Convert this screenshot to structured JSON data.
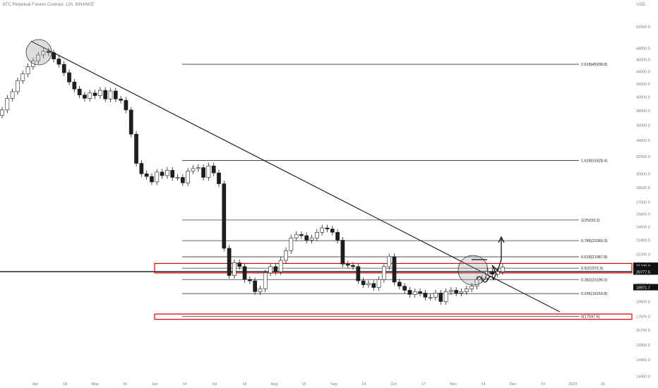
{
  "header": {
    "title": "BTC Perpetual Futures Contract, 12h, BINANCE",
    "currency": "USD"
  },
  "colors": {
    "candle": "#1e1e1e",
    "fib_line": "#3a3a3a",
    "zone_border": "#d80000",
    "trendline": "#111111",
    "circle_fill": "#9aa0a6",
    "grid_text": "#787b86",
    "price_badge": "#111111"
  },
  "chart_data": {
    "type": "candlestick",
    "symbol": "BTC Perpetual Futures Contract",
    "interval": "12h",
    "exchange": "BINANCE",
    "y_scale": "log",
    "ylim": [
      14000,
      56000
    ],
    "y_ticks": [
      "52000.0",
      "48000.0",
      "46000.0",
      "44000.0",
      "42000.0",
      "40000.0",
      "38000.0",
      "36000.0",
      "34000.0",
      "32000.0",
      "30000.0",
      "28500.0",
      "27000.0",
      "25800.0",
      "24600.0",
      "23400.0",
      "22200.0",
      "21000.0",
      "19800.0",
      "18600.0",
      "17600.0",
      "16700.0",
      "15800.0",
      "14960.0",
      "14060.0"
    ],
    "x_ticks": [
      "Apr",
      "18",
      "May",
      "16",
      "Jun",
      "14",
      "Jul",
      "18",
      "Aug",
      "15",
      "Sep",
      "14",
      "Oct",
      "17",
      "Nov",
      "14",
      "Dec",
      "19",
      "2023",
      "16"
    ],
    "closes": [
      38100,
      39800,
      40800,
      42500,
      43600,
      44800,
      45800,
      46800,
      47500,
      47200,
      46100,
      45200,
      43800,
      42300,
      41200,
      40300,
      39800,
      40600,
      40200,
      41000,
      39700,
      40900,
      39700,
      39500,
      38100,
      34800,
      31200,
      30000,
      29700,
      29100,
      30200,
      29800,
      30400,
      29600,
      29600,
      29000,
      30300,
      30600,
      30700,
      29600,
      30900,
      30100,
      28900,
      22700,
      20500,
      21500,
      21200,
      20200,
      20100,
      19300,
      19500,
      20700,
      21200,
      20800,
      21700,
      22500,
      23600,
      23900,
      23800,
      23400,
      23600,
      24100,
      24500,
      24400,
      24100,
      23400,
      21400,
      21300,
      21200,
      20100,
      19800,
      19900,
      19600,
      20200,
      21200,
      22000,
      20000,
      19700,
      19400,
      19100,
      19300,
      19200,
      18900,
      18900,
      19200,
      18600,
      19300,
      19400,
      19200,
      19300,
      19500,
      19700,
      20200,
      20300,
      20800,
      20600,
      20800,
      21150
    ],
    "fibonacci": [
      {
        "label": "2.618(45208.8)",
        "price": 45208.8
      },
      {
        "label": "1.618(31528.4)",
        "price": 31528.4
      },
      {
        "label": "1(25233.2)",
        "price": 25233.2
      },
      {
        "label": "0.786(23360.3)",
        "price": 23360.3
      },
      {
        "label": "0.618(21987.8)",
        "price": 21987.8
      },
      {
        "label": "0.5(21072.3)",
        "price": 21072.3
      },
      {
        "label": "0.382(20195.0)",
        "price": 20195.0
      },
      {
        "label": "0.236(19159.8)",
        "price": 19159.8
      },
      {
        "label": "0(17597.6)",
        "price": 17597.6
      }
    ],
    "price_badges": [
      {
        "label": "21240.0",
        "price": 21240.0
      },
      {
        "label": "01:51:24",
        "price": 20950.0
      },
      {
        "label": "20777.5",
        "price": 20777.5
      },
      {
        "label": "18971.7",
        "price": 19600.0
      }
    ],
    "horizontal_line_price": 20800,
    "zones": [
      {
        "price_high": 21450,
        "price_low": 20700,
        "start_x_tick": "Jun"
      },
      {
        "price_high": 17750,
        "price_low": 17400,
        "start_x_tick": "Jun"
      }
    ],
    "trendline": {
      "from_price": 48000,
      "to_price": 17800
    }
  }
}
